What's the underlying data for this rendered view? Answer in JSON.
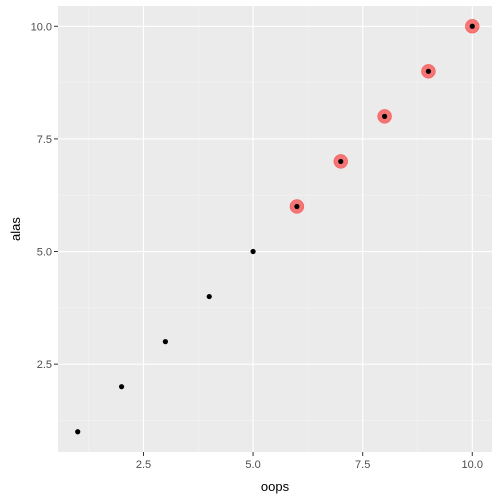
{
  "chart_data": {
    "type": "scatter",
    "title": "",
    "xlabel": "oops",
    "ylabel": "alas",
    "xlim": [
      0.55,
      10.45
    ],
    "ylim": [
      0.55,
      10.45
    ],
    "x_ticks": [
      2.5,
      5.0,
      7.5,
      10.0
    ],
    "x_tick_labels": [
      "2.5",
      "5.0",
      "7.5",
      "10.0"
    ],
    "y_ticks": [
      2.5,
      5.0,
      7.5,
      10.0
    ],
    "y_tick_labels": [
      "2.5",
      "5.0",
      "7.5",
      "10.0"
    ],
    "grid": true,
    "legend": "none",
    "series": [
      {
        "x": [
          1,
          2,
          3,
          4,
          5,
          6,
          7,
          8,
          9,
          10
        ],
        "y": [
          1,
          2,
          3,
          4,
          5,
          6,
          7,
          8,
          9,
          10
        ],
        "color": "#000000"
      },
      {
        "x": [
          6,
          7,
          8,
          9,
          10
        ],
        "y": [
          6,
          7,
          8,
          9,
          10
        ],
        "color": "#ff0000",
        "alpha": 0.5
      }
    ],
    "colors": {
      "panel_bg": "#ebebeb",
      "grid_major": "#ffffff",
      "grid_minor": "#f4f4f4",
      "tick_color": "#333333"
    }
  }
}
